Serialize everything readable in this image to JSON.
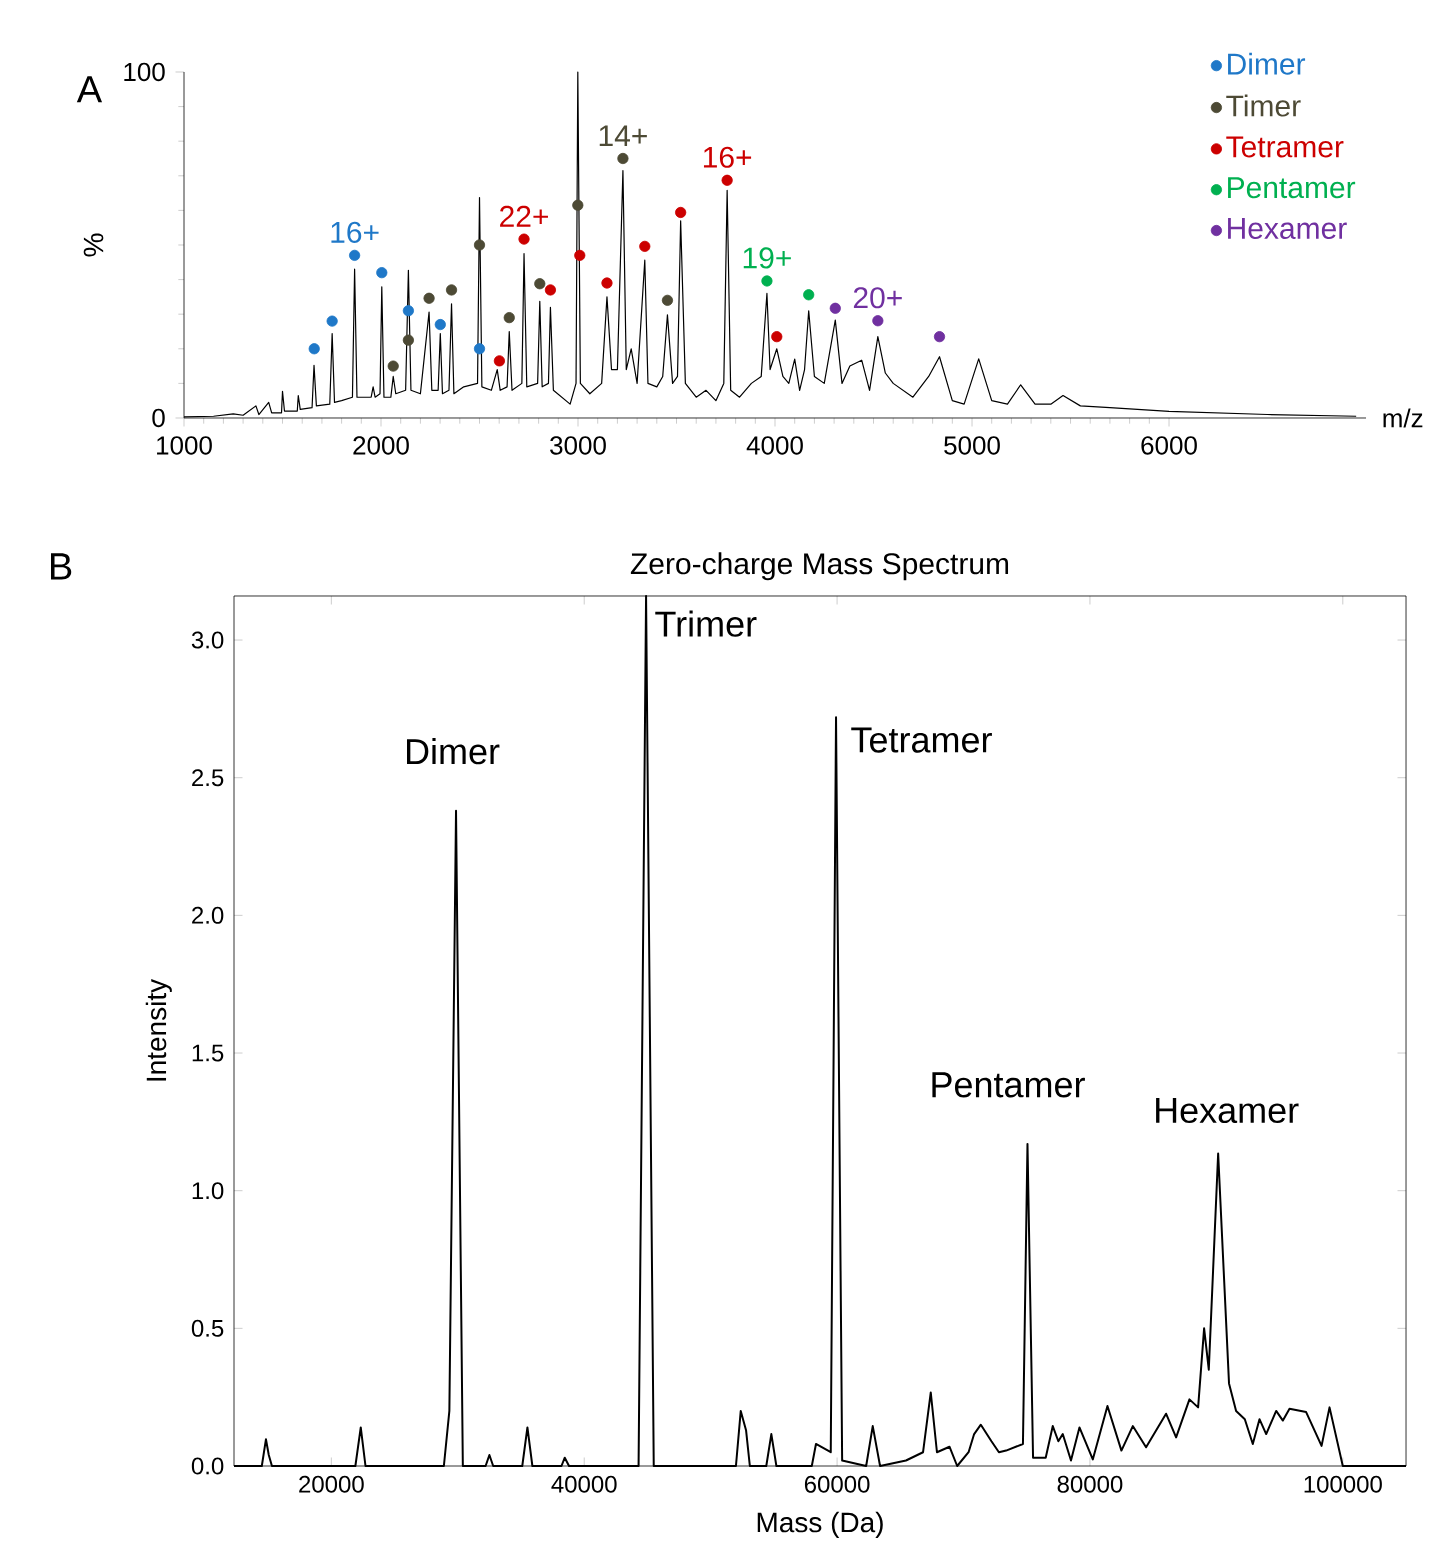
{
  "chart_data": [
    {
      "type": "line",
      "xlabel": "m/z",
      "ylabel": "%",
      "xlim": [
        1000,
        7000
      ],
      "ylim": [
        0,
        100
      ],
      "xticks": [
        1000,
        2000,
        3000,
        4000,
        5000,
        6000
      ],
      "yticks": [
        0,
        100
      ],
      "legend": "top right",
      "annotations": [
        "A",
        {
          "text": "16+",
          "x": 1866,
          "y": 47
        },
        {
          "text": "22+",
          "x": 2726,
          "y": 51.7
        },
        {
          "text": "14+",
          "x": 3228,
          "y": 75
        },
        {
          "text": "16+",
          "x": 3757,
          "y": 68.7
        },
        {
          "text": "19+",
          "x": 3959,
          "y": 39.6
        },
        {
          "text": "20+",
          "x": 4522,
          "y": 28.1
        }
      ],
      "series": [
        {
          "color": "#000000",
          "x": [
            1000,
            1150,
            1250,
            1300,
            1365,
            1380,
            1430,
            1445,
            1495,
            1500,
            1510,
            1575,
            1580,
            1590,
            1650,
            1660,
            1672,
            1740,
            1752,
            1764,
            1800,
            1855,
            1866,
            1878,
            1950,
            1960,
            1970,
            1995,
            2004,
            2015,
            2050,
            2062,
            2075,
            2125,
            2139,
            2152,
            2200,
            2244,
            2258,
            2290,
            2301,
            2312,
            2345,
            2358,
            2370,
            2420,
            2490,
            2500,
            2512,
            2560,
            2590,
            2605,
            2640,
            2651,
            2665,
            2715,
            2726,
            2740,
            2795,
            2806,
            2818,
            2850,
            2860,
            2875,
            2960,
            2990,
            2999,
            3012,
            3060,
            3120,
            3147,
            3170,
            3200,
            3228,
            3245,
            3270,
            3300,
            3339,
            3355,
            3400,
            3430,
            3454,
            3480,
            3505,
            3521,
            3545,
            3600,
            3650,
            3700,
            3740,
            3757,
            3775,
            3820,
            3880,
            3930,
            3959,
            3975,
            4009,
            4040,
            4070,
            4100,
            4125,
            4150,
            4171,
            4200,
            4250,
            4306,
            4340,
            4380,
            4440,
            4480,
            4522,
            4560,
            4600,
            4700,
            4780,
            4835,
            4900,
            4960,
            5034,
            5100,
            5180,
            5247,
            5320,
            5400,
            5462,
            5550,
            5700,
            6000,
            6500,
            6950
          ],
          "values": [
            0.3,
            0.5,
            1.2,
            0.8,
            3.5,
            1,
            4.5,
            1.5,
            1.5,
            7.7,
            2,
            2,
            6.5,
            2.5,
            3,
            15.2,
            3.5,
            4,
            24.4,
            4.5,
            5,
            6,
            43,
            6,
            6,
            9,
            6,
            7,
            37.9,
            6,
            6,
            12,
            7,
            8,
            42.7,
            8,
            7,
            30.6,
            8,
            8,
            24.4,
            7,
            8,
            33,
            7,
            9,
            10,
            63.7,
            9,
            8,
            14,
            8,
            9,
            25,
            8,
            10,
            47.5,
            9,
            10,
            33.7,
            9,
            10,
            32,
            8,
            4,
            10,
            100,
            10,
            7,
            10,
            35,
            14,
            14,
            71.5,
            14,
            20,
            10,
            45.6,
            10,
            9,
            12,
            29.8,
            10,
            12,
            57,
            10,
            6,
            8,
            5,
            10,
            65.8,
            8,
            6,
            10,
            12,
            36,
            14,
            20,
            12,
            10,
            17,
            8,
            14,
            31,
            12,
            10,
            28.3,
            10,
            15,
            16.7,
            8,
            23.5,
            13,
            10,
            6,
            12,
            17.7,
            5,
            4,
            17.1,
            5,
            4,
            9.6,
            4,
            4,
            6.5,
            3.5,
            3,
            1.9,
            1,
            0.5
          ]
        },
        {
          "type": "scatter",
          "name": "Dimer",
          "color": "#1f78c8",
          "marker": "circle",
          "x": [
            1661,
            1752,
            1866,
            2004,
            2139,
            2301,
            2500
          ],
          "values": [
            20,
            28,
            47,
            42,
            31,
            27,
            20
          ]
        },
        {
          "type": "scatter",
          "name": "Timer",
          "color": "#4d4a35",
          "marker": "circle",
          "x": [
            2062,
            2139,
            2244,
            2358,
            2500,
            2651,
            2806,
            2999,
            3228,
            3454
          ],
          "values": [
            15,
            22.5,
            34.6,
            37,
            50,
            29,
            38.8,
            61.5,
            75,
            34
          ]
        },
        {
          "type": "scatter",
          "name": "Tetramer",
          "color": "#cc0000",
          "marker": "circle",
          "x": [
            2601,
            2726,
            2860,
            3009,
            3147,
            3339,
            3521,
            3757,
            4009
          ],
          "values": [
            16.5,
            51.7,
            37,
            47,
            39,
            49.6,
            59.4,
            68.7,
            23.5
          ]
        },
        {
          "type": "scatter",
          "name": "Pentamer",
          "color": "#00b050",
          "marker": "circle",
          "x": [
            3959,
            4171
          ],
          "values": [
            39.6,
            35.6
          ]
        },
        {
          "type": "scatter",
          "name": "Hexamer",
          "color": "#7030a0",
          "marker": "circle",
          "x": [
            4306,
            4522,
            4835
          ],
          "values": [
            31.7,
            28.1,
            23.5
          ]
        }
      ]
    },
    {
      "type": "line",
      "title": "Zero-charge Mass Spectrum",
      "xlabel": "Mass (Da)",
      "ylabel": "Intensity",
      "xlim": [
        12300,
        105000
      ],
      "ylim": [
        0,
        3.16
      ],
      "xticks": [
        20000,
        40000,
        60000,
        80000,
        100000
      ],
      "yticks": [
        {
          "value": 0,
          "label": "0.0"
        },
        0.5,
        {
          "value": 1,
          "label": "1.0"
        },
        1.5,
        {
          "value": 2,
          "label": "2.0"
        },
        2.5,
        {
          "value": 3,
          "label": "3.0"
        }
      ],
      "annotations": [
        "B",
        {
          "text": "Dimer",
          "x": 29861,
          "y": 2.38
        },
        {
          "text": "Trimer",
          "x": 44892,
          "y": 3.16
        },
        {
          "text": "Tetramer",
          "x": 59917,
          "y": 2.72
        },
        {
          "text": "Pentamer",
          "x": 75060,
          "y": 1.17
        },
        {
          "text": "Hexamer",
          "x": 90140,
          "y": 1.135
        }
      ],
      "series": [
        {
          "color": "#000000",
          "x": [
            12300,
            14500,
            14826,
            15050,
            15300,
            21900,
            22326,
            22700,
            28900,
            29334,
            29861,
            30400,
            32200,
            32500,
            32800,
            35100,
            35508,
            35900,
            38200,
            38461,
            38800,
            44300,
            44892,
            45500,
            52000,
            52380,
            52800,
            53100,
            54400,
            54800,
            55200,
            58000,
            58330,
            59500,
            59917,
            60400,
            62300,
            62820,
            63400,
            65450,
            66800,
            67410,
            67900,
            68890,
            69500,
            70400,
            70840,
            71370,
            72210,
            72800,
            73370,
            74700,
            75060,
            75500,
            76500,
            77060,
            77500,
            77850,
            78500,
            79170,
            80225,
            81385,
            82490,
            83390,
            84440,
            86020,
            86815,
            87870,
            88555,
            89030,
            89400,
            90140,
            91000,
            91560,
            92250,
            92880,
            93410,
            93940,
            94730,
            95260,
            95785,
            97100,
            98320,
            98950,
            100000,
            105000
          ],
          "values": [
            0,
            0,
            0.097,
            0.04,
            0,
            0,
            0.14,
            0,
            0,
            0.2,
            2.38,
            0,
            0,
            0.04,
            0,
            0,
            0.14,
            0,
            0,
            0.03,
            0,
            0,
            3.16,
            0,
            0,
            0.2,
            0.13,
            0,
            0,
            0.116,
            0,
            0,
            0.08,
            0.05,
            2.72,
            0.02,
            0,
            0.145,
            0,
            0.02,
            0.05,
            0.267,
            0.05,
            0.07,
            0,
            0.05,
            0.116,
            0.15,
            0.09,
            0.05,
            0.056,
            0.08,
            1.17,
            0.03,
            0.03,
            0.145,
            0.09,
            0.116,
            0.02,
            0.14,
            0.024,
            0.218,
            0.056,
            0.145,
            0.068,
            0.19,
            0.104,
            0.242,
            0.213,
            0.5,
            0.35,
            1.135,
            0.3,
            0.2,
            0.17,
            0.08,
            0.17,
            0.116,
            0.2,
            0.165,
            0.208,
            0.196,
            0.073,
            0.213,
            0,
            0
          ]
        }
      ]
    }
  ]
}
